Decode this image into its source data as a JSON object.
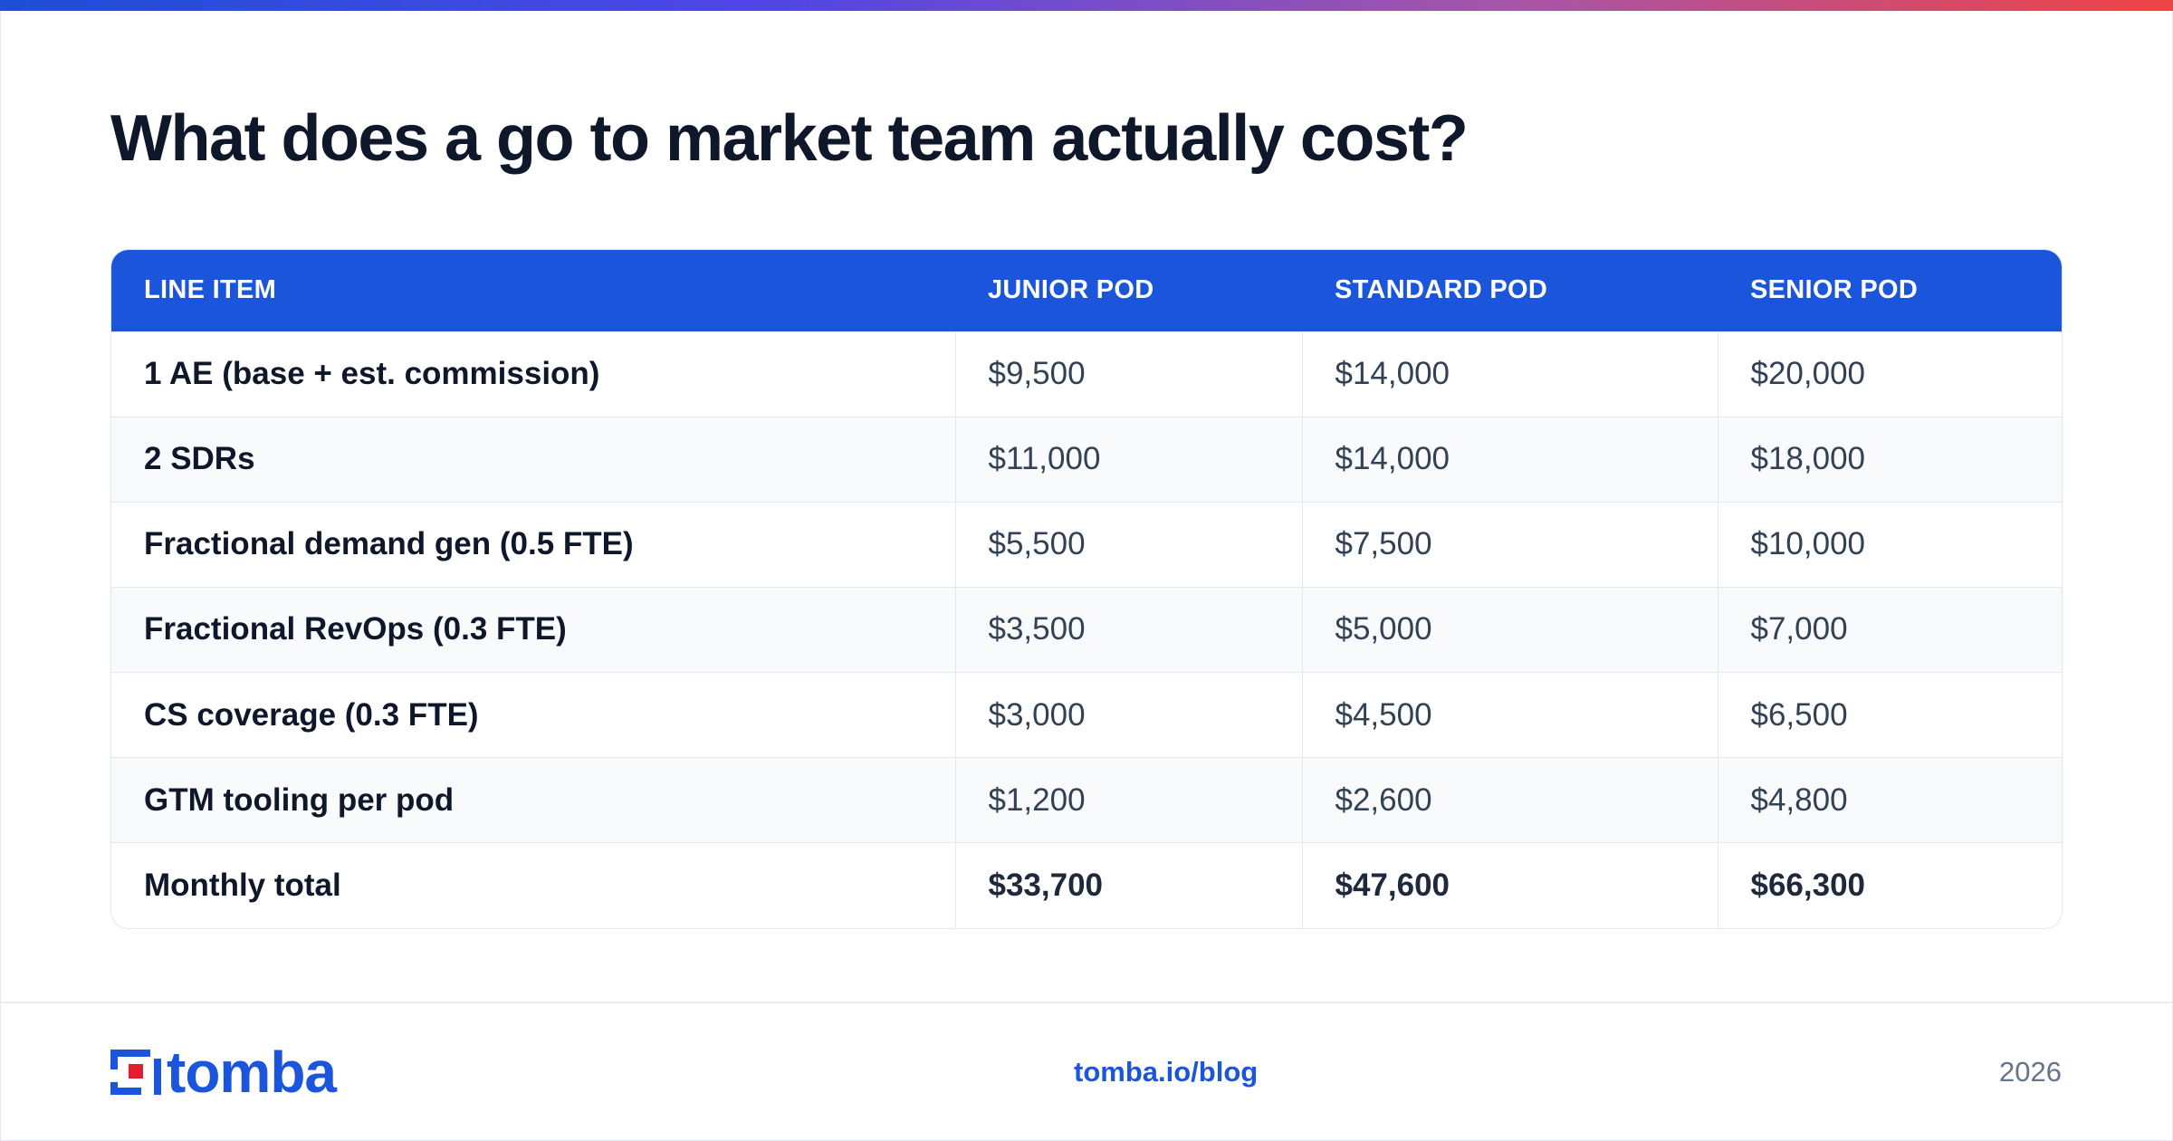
{
  "title": "What does a go to market team actually cost?",
  "table": {
    "headers": [
      "LINE ITEM",
      "JUNIOR POD",
      "STANDARD POD",
      "SENIOR POD"
    ],
    "rows": [
      [
        "1 AE (base + est. commission)",
        "$9,500",
        "$14,000",
        "$20,000"
      ],
      [
        "2 SDRs",
        "$11,000",
        "$14,000",
        "$18,000"
      ],
      [
        "Fractional demand gen (0.5 FTE)",
        "$5,500",
        "$7,500",
        "$10,000"
      ],
      [
        "Fractional RevOps (0.3 FTE)",
        "$3,500",
        "$5,000",
        "$7,000"
      ],
      [
        "CS coverage (0.3 FTE)",
        "$3,000",
        "$4,500",
        "$6,500"
      ],
      [
        "GTM tooling per pod",
        "$1,200",
        "$2,600",
        "$4,800"
      ],
      [
        "Monthly total",
        "$33,700",
        "$47,600",
        "$66,300"
      ]
    ]
  },
  "footer": {
    "logo_text": "tomba",
    "link": "tomba.io/blog",
    "year": "2026"
  },
  "colors": {
    "accent": "#1b55db",
    "accent_red": "#e11d2e",
    "text_dark": "#0f172a",
    "row_alt": "#f8fafc"
  }
}
